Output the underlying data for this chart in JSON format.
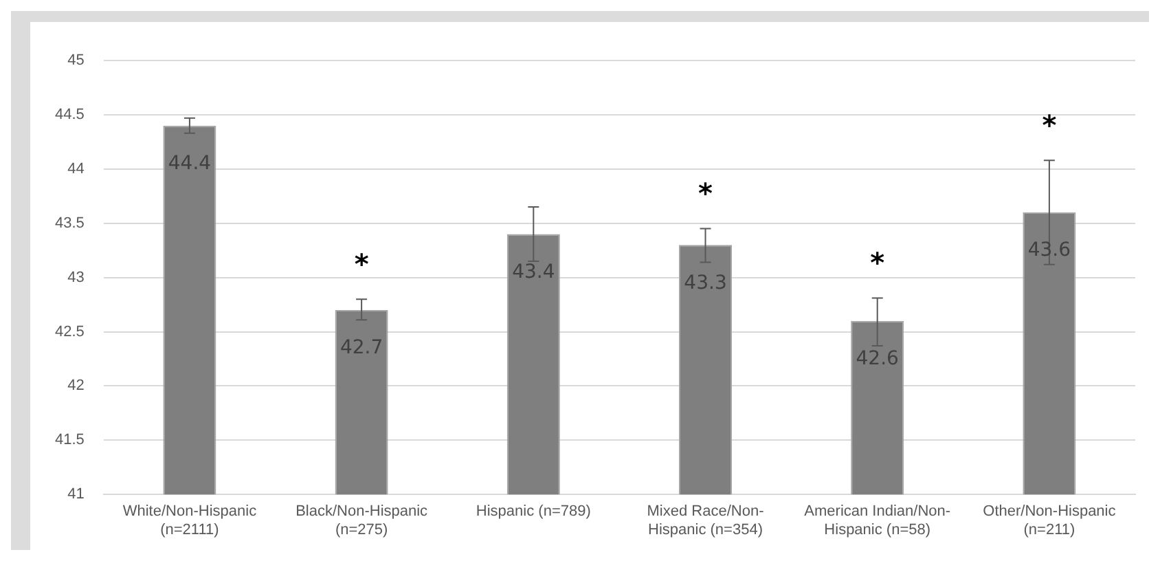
{
  "chart_data": {
    "type": "bar",
    "categories": [
      "White/Non-Hispanic\n(n=2111)",
      "Black/Non-Hispanic\n(n=275)",
      "Hispanic (n=789)",
      "Mixed Race/Non-\nHispanic (n=354)",
      "American Indian/Non-\nHispanic (n=58)",
      "Other/Non-Hispanic\n(n=211)"
    ],
    "values": [
      44.4,
      42.7,
      43.4,
      43.3,
      42.6,
      43.6
    ],
    "errors": [
      [
        44.33,
        44.47
      ],
      [
        42.61,
        42.8
      ],
      [
        43.15,
        43.65
      ],
      [
        43.14,
        43.45
      ],
      [
        42.37,
        42.81
      ],
      [
        43.12,
        44.08
      ]
    ],
    "color": "#7f7f7f",
    "ylim": [
      41,
      45
    ],
    "yticks": [
      41,
      41.5,
      42,
      42.5,
      43,
      43.5,
      44,
      44.5,
      45
    ],
    "grid": "y",
    "legend": false,
    "data_labels": true,
    "annotations": [
      {
        "text": "*",
        "x": "Black/Non-Hispanic\n(n=275)",
        "y": 42.8
      },
      {
        "text": "*",
        "x": "Mixed Race/Non-\nHispanic (n=354)",
        "y": 43.45
      },
      {
        "text": "*",
        "x": "American Indian/Non-\nHispanic (n=58)",
        "y": 42.81
      },
      {
        "text": "*",
        "x": "Other/Non-Hispanic\n(n=211)",
        "y": 44.08
      }
    ]
  }
}
